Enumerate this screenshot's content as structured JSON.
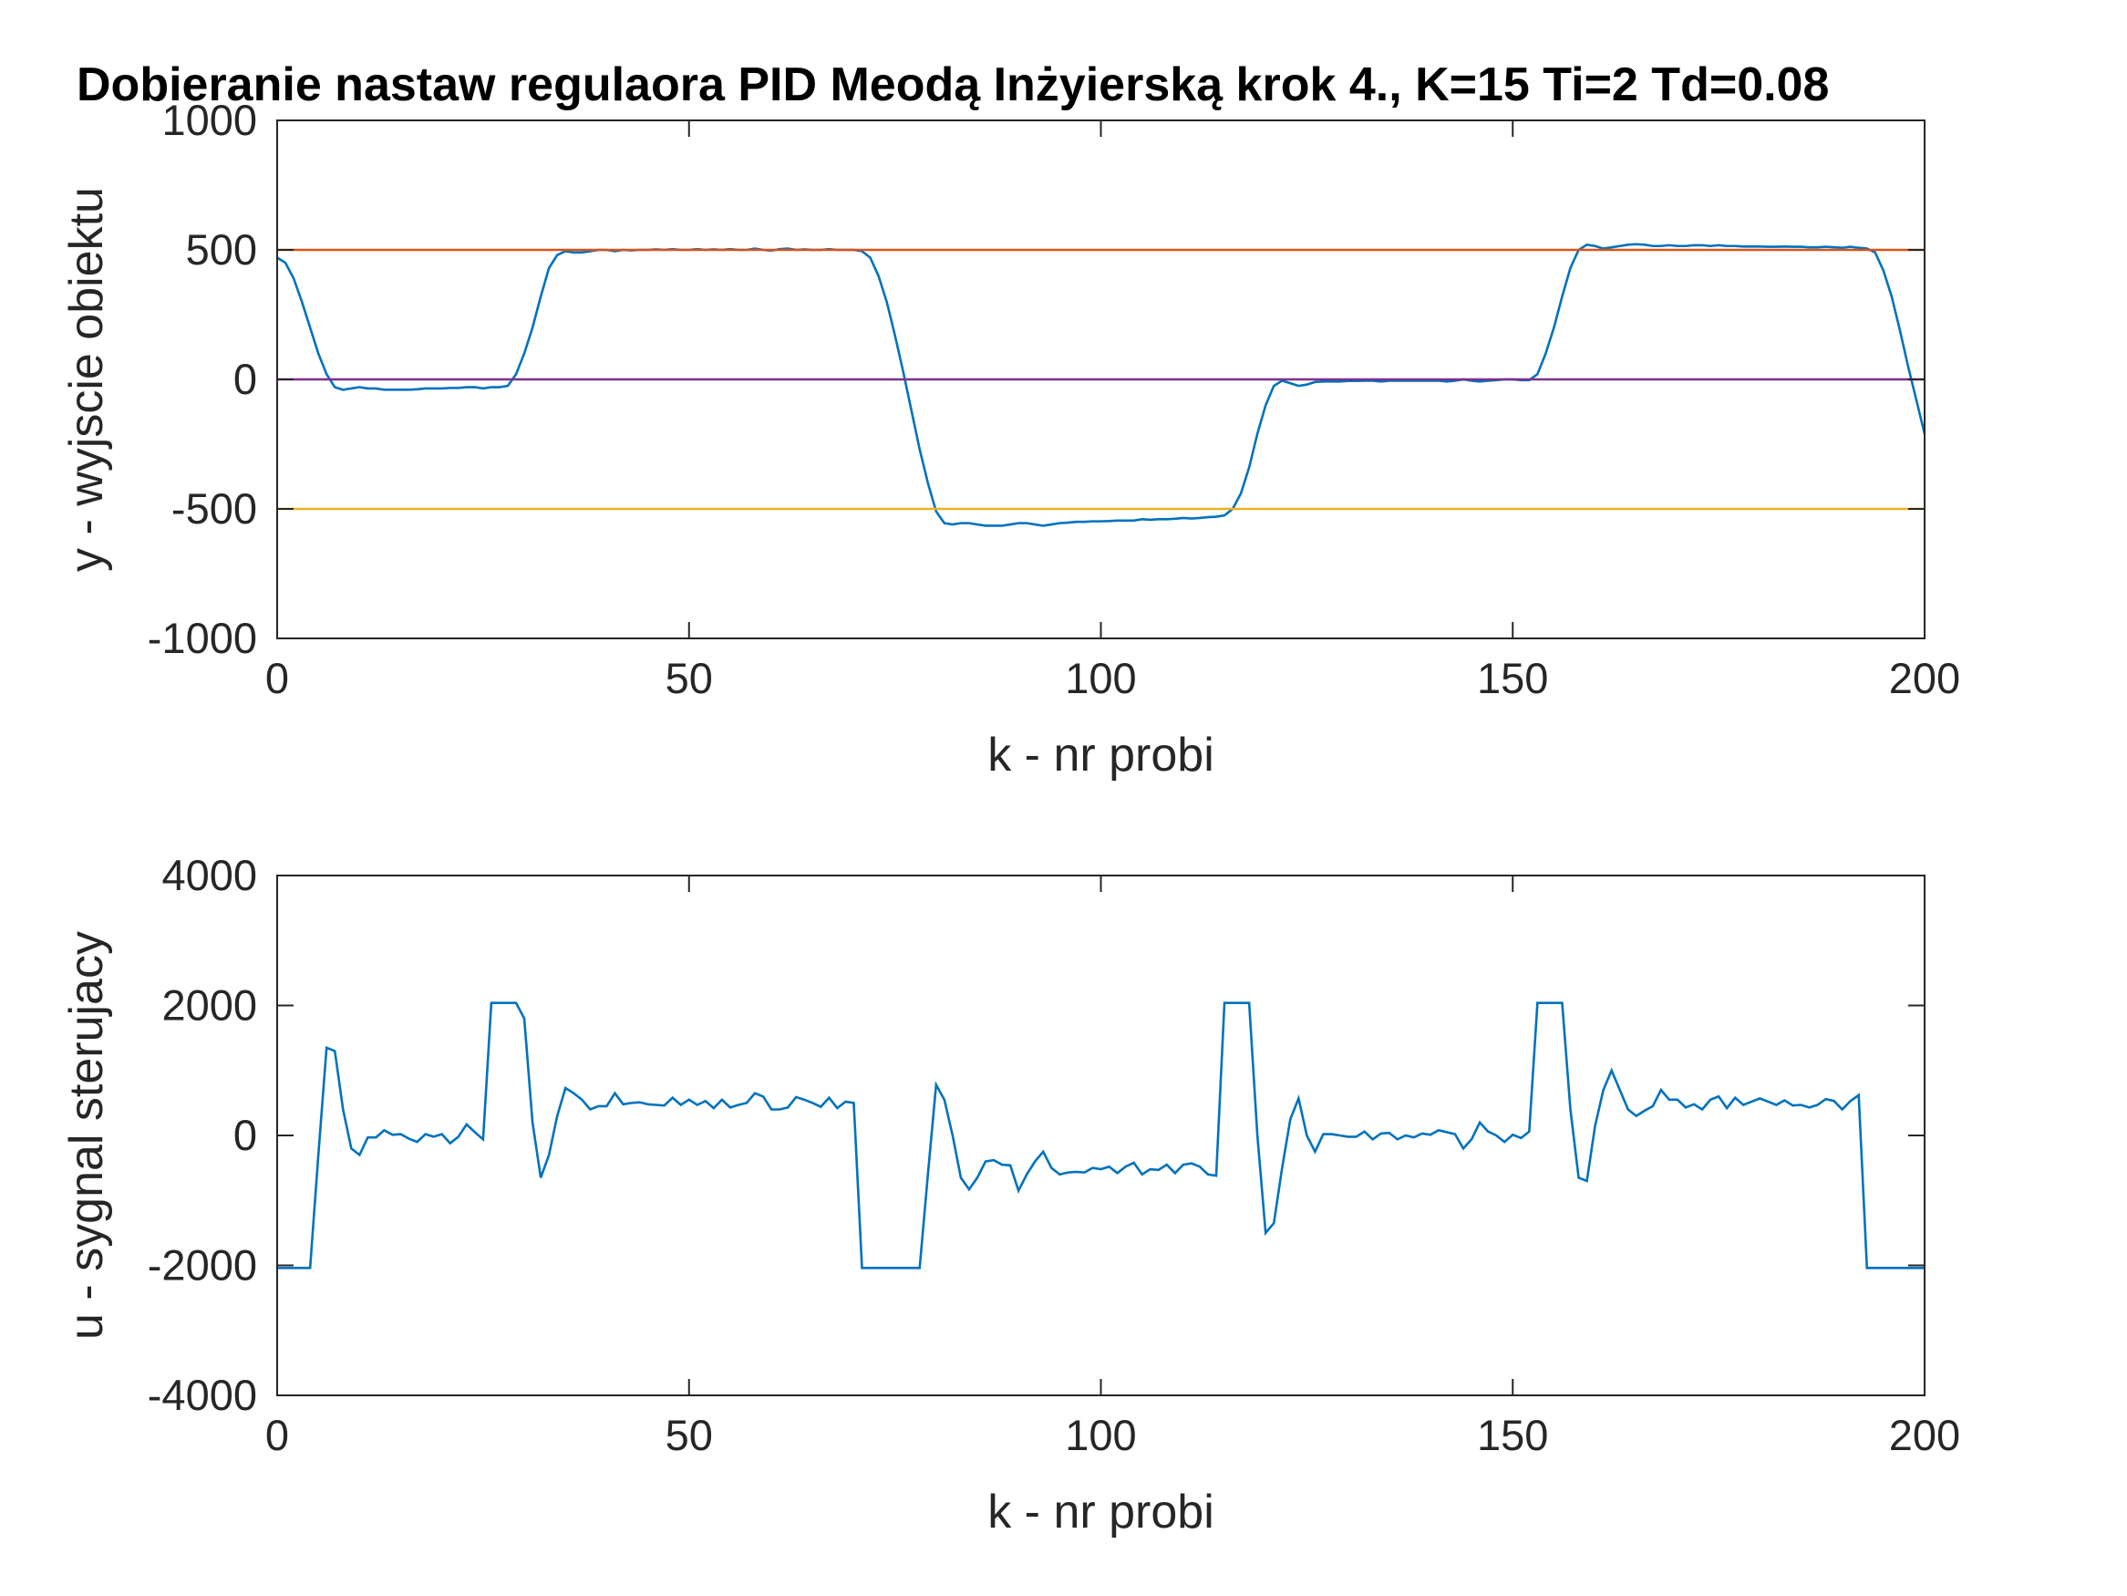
{
  "chart_data": [
    {
      "type": "line",
      "title": "Dobieranie nastaw regulaora PID Meodą Inżyierską krok 4., K=15 Ti=2 Td=0.08",
      "xlabel": "k - nr probi",
      "ylabel": "y - wyjscie obiektu",
      "xlim": [
        0,
        200
      ],
      "ylim": [
        -1000,
        1000
      ],
      "xticks": [
        0,
        50,
        100,
        150,
        200
      ],
      "yticks": [
        -1000,
        -500,
        0,
        500,
        1000
      ],
      "x": [
        0,
        1,
        2,
        3,
        4,
        5,
        6,
        7,
        8,
        9,
        10,
        11,
        12,
        13,
        14,
        15,
        16,
        17,
        18,
        19,
        20,
        21,
        22,
        23,
        24,
        25,
        26,
        27,
        28,
        29,
        30,
        31,
        32,
        33,
        34,
        35,
        36,
        37,
        38,
        39,
        40,
        41,
        42,
        43,
        44,
        45,
        46,
        47,
        48,
        49,
        50,
        51,
        52,
        53,
        54,
        55,
        56,
        57,
        58,
        59,
        60,
        61,
        62,
        63,
        64,
        65,
        66,
        67,
        68,
        69,
        70,
        71,
        72,
        73,
        74,
        75,
        76,
        77,
        78,
        79,
        80,
        81,
        82,
        83,
        84,
        85,
        86,
        87,
        88,
        89,
        90,
        91,
        92,
        93,
        94,
        95,
        96,
        97,
        98,
        99,
        100,
        101,
        102,
        103,
        104,
        105,
        106,
        107,
        108,
        109,
        110,
        111,
        112,
        113,
        114,
        115,
        116,
        117,
        118,
        119,
        120,
        121,
        122,
        123,
        124,
        125,
        126,
        127,
        128,
        129,
        130,
        131,
        132,
        133,
        134,
        135,
        136,
        137,
        138,
        139,
        140,
        141,
        142,
        143,
        144,
        145,
        146,
        147,
        148,
        149,
        150,
        151,
        152,
        153,
        154,
        155,
        156,
        157,
        158,
        159,
        160,
        161,
        162,
        163,
        164,
        165,
        166,
        167,
        168,
        169,
        170,
        171,
        172,
        173,
        174,
        175,
        176,
        177,
        178,
        179,
        180,
        181,
        182,
        183,
        184,
        185,
        186,
        187,
        188,
        189,
        190,
        191,
        192,
        193,
        194,
        195,
        196,
        197,
        198,
        199,
        200
      ],
      "series": [
        {
          "color": "#0072BD",
          "values": [
            470,
            450,
            390,
            300,
            200,
            100,
            20,
            -30,
            -40,
            -35,
            -30,
            -35,
            -35,
            -40,
            -40,
            -40,
            -40,
            -38,
            -35,
            -35,
            -35,
            -33,
            -33,
            -30,
            -30,
            -35,
            -30,
            -30,
            -25,
            20,
            100,
            200,
            320,
            430,
            480,
            495,
            490,
            490,
            495,
            500,
            500,
            495,
            500,
            498,
            500,
            500,
            502,
            500,
            503,
            500,
            500,
            503,
            500,
            502,
            500,
            503,
            500,
            500,
            505,
            500,
            497,
            503,
            505,
            500,
            502,
            500,
            500,
            503,
            500,
            500,
            500,
            495,
            470,
            400,
            300,
            170,
            30,
            -120,
            -270,
            -400,
            -510,
            -555,
            -560,
            -555,
            -555,
            -560,
            -565,
            -565,
            -565,
            -560,
            -555,
            -555,
            -560,
            -565,
            -560,
            -555,
            -553,
            -550,
            -550,
            -548,
            -548,
            -547,
            -545,
            -545,
            -545,
            -540,
            -542,
            -540,
            -540,
            -538,
            -535,
            -537,
            -535,
            -532,
            -530,
            -525,
            -500,
            -440,
            -340,
            -210,
            -100,
            -25,
            -5,
            -15,
            -25,
            -20,
            -10,
            -8,
            -8,
            -8,
            -6,
            -6,
            -5,
            -5,
            -8,
            -5,
            -5,
            -5,
            -5,
            -5,
            -5,
            -5,
            -8,
            -5,
            0,
            -5,
            -8,
            -5,
            -3,
            0,
            0,
            -3,
            -3,
            20,
            100,
            200,
            320,
            430,
            500,
            520,
            515,
            505,
            510,
            515,
            520,
            522,
            520,
            515,
            515,
            518,
            515,
            515,
            518,
            518,
            515,
            518,
            515,
            515,
            513,
            513,
            513,
            512,
            512,
            513,
            512,
            512,
            510,
            510,
            512,
            510,
            508,
            512,
            508,
            505,
            490,
            420,
            320,
            190,
            50,
            -80,
            -210
          ]
        },
        {
          "color": "#D95319",
          "x": [
            0,
            200
          ],
          "values": [
            500,
            500
          ]
        },
        {
          "color": "#7E2F8E",
          "x": [
            0,
            200
          ],
          "values": [
            0,
            0
          ]
        },
        {
          "color": "#EDB120",
          "x": [
            0,
            200
          ],
          "values": [
            -500,
            -500
          ]
        }
      ]
    },
    {
      "type": "line",
      "xlabel": "k - nr probi",
      "ylabel": "u - sygnal sterujacy",
      "xlim": [
        0,
        200
      ],
      "ylim": [
        -4000,
        4000
      ],
      "xticks": [
        0,
        50,
        100,
        150,
        200
      ],
      "yticks": [
        -4000,
        -2000,
        0,
        2000,
        4000
      ],
      "x": [
        0,
        1,
        2,
        3,
        4,
        5,
        6,
        7,
        8,
        9,
        10,
        11,
        12,
        13,
        14,
        15,
        16,
        17,
        18,
        19,
        20,
        21,
        22,
        23,
        24,
        25,
        26,
        27,
        28,
        29,
        30,
        31,
        32,
        33,
        34,
        35,
        36,
        37,
        38,
        39,
        40,
        41,
        42,
        43,
        44,
        45,
        46,
        47,
        48,
        49,
        50,
        51,
        52,
        53,
        54,
        55,
        56,
        57,
        58,
        59,
        60,
        61,
        62,
        63,
        64,
        65,
        66,
        67,
        68,
        69,
        70,
        71,
        72,
        73,
        74,
        75,
        76,
        77,
        78,
        79,
        80,
        81,
        82,
        83,
        84,
        85,
        86,
        87,
        88,
        89,
        90,
        91,
        92,
        93,
        94,
        95,
        96,
        97,
        98,
        99,
        100,
        101,
        102,
        103,
        104,
        105,
        106,
        107,
        108,
        109,
        110,
        111,
        112,
        113,
        114,
        115,
        116,
        117,
        118,
        119,
        120,
        121,
        122,
        123,
        124,
        125,
        126,
        127,
        128,
        129,
        130,
        131,
        132,
        133,
        134,
        135,
        136,
        137,
        138,
        139,
        140,
        141,
        142,
        143,
        144,
        145,
        146,
        147,
        148,
        149,
        150,
        151,
        152,
        153,
        154,
        155,
        156,
        157,
        158,
        159,
        160,
        161,
        162,
        163,
        164,
        165,
        166,
        167,
        168,
        169,
        170,
        171,
        172,
        173,
        174,
        175,
        176,
        177,
        178,
        179,
        180,
        181,
        182,
        183,
        184,
        185,
        186,
        187,
        188,
        189,
        190,
        191,
        192,
        193,
        194,
        195,
        196,
        197,
        198,
        199,
        200
      ],
      "series": [
        {
          "color": "#0072BD",
          "values": [
            -2040,
            -2040,
            -2040,
            -2040,
            -2040,
            -300,
            1350,
            1300,
            400,
            -200,
            -300,
            -30,
            -30,
            80,
            10,
            20,
            -50,
            -100,
            20,
            -20,
            20,
            -120,
            -20,
            170,
            50,
            -60,
            2040,
            2040,
            2040,
            2040,
            1800,
            200,
            -650,
            -300,
            300,
            730,
            650,
            550,
            400,
            450,
            450,
            650,
            480,
            500,
            510,
            480,
            470,
            460,
            580,
            470,
            550,
            470,
            530,
            420,
            550,
            430,
            470,
            500,
            650,
            600,
            400,
            400,
            430,
            590,
            550,
            500,
            440,
            580,
            420,
            520,
            500,
            -2040,
            -2040,
            -2040,
            -2040,
            -2040,
            -2040,
            -2040,
            -2040,
            -600,
            780,
            550,
            0,
            -650,
            -830,
            -650,
            -400,
            -380,
            -450,
            -460,
            -850,
            -600,
            -400,
            -250,
            -500,
            -600,
            -570,
            -560,
            -570,
            -500,
            -520,
            -480,
            -580,
            -480,
            -420,
            -600,
            -520,
            -530,
            -450,
            -580,
            -450,
            -430,
            -480,
            -600,
            -620,
            2040,
            2040,
            2040,
            2040,
            0,
            -1500,
            -1350,
            -500,
            250,
            570,
            0,
            -250,
            20,
            20,
            0,
            -20,
            -20,
            60,
            -60,
            30,
            40,
            -60,
            0,
            -30,
            30,
            10,
            80,
            50,
            20,
            -200,
            -60,
            200,
            60,
            0,
            -100,
            10,
            -40,
            60,
            2040,
            2040,
            2040,
            2040,
            400,
            -650,
            -700,
            150,
            700,
            1000,
            700,
            400,
            300,
            380,
            450,
            700,
            550,
            550,
            430,
            480,
            400,
            550,
            600,
            420,
            580,
            470,
            520,
            570,
            520,
            470,
            540,
            460,
            470,
            430,
            470,
            560,
            530,
            400,
            530,
            620,
            -2040,
            -2040,
            -2040,
            -2040,
            -2040,
            -2040,
            -2040,
            -2040
          ]
        }
      ]
    }
  ]
}
